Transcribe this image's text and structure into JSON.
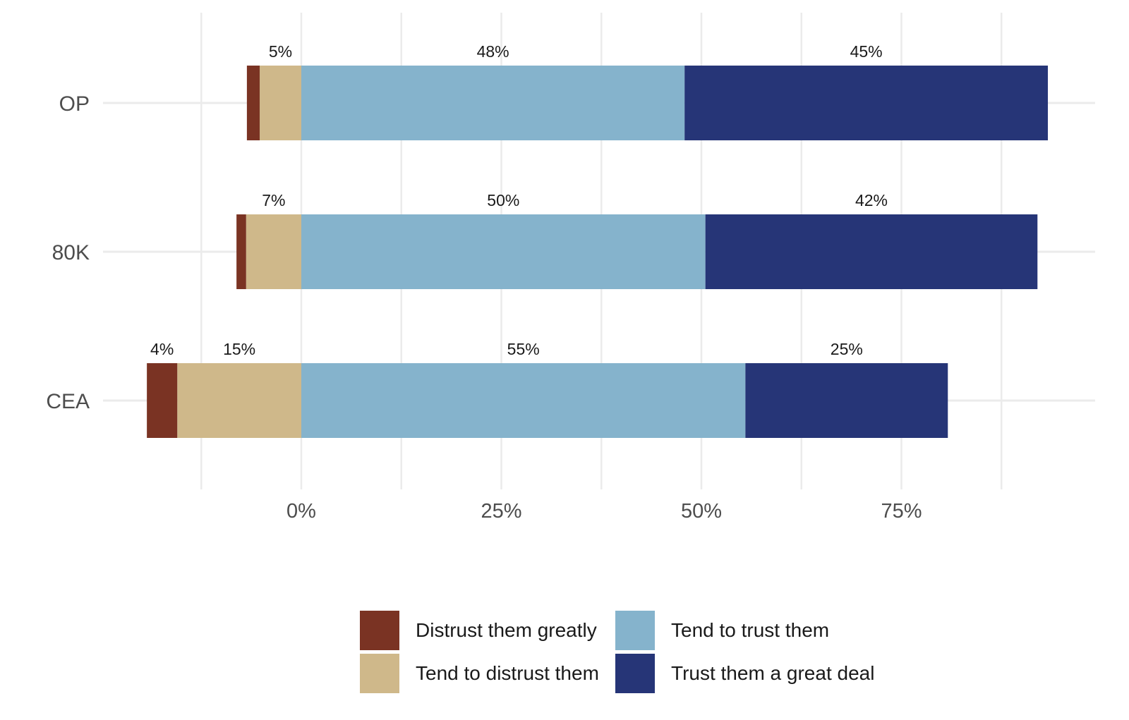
{
  "chart_data": {
    "type": "bar",
    "orientation": "horizontal",
    "stacked": "diverging",
    "title": "",
    "xlabel": "",
    "ylabel": "",
    "categories": [
      "OP",
      "80K",
      "CEA"
    ],
    "xlim": [
      -0.25,
      1.0
    ],
    "x_ticks": [
      0,
      0.25,
      0.5,
      0.75
    ],
    "x_tick_labels": [
      "0%",
      "25%",
      "50%",
      "75%"
    ],
    "grid": true,
    "legend_position": "bottom",
    "series": [
      {
        "name": "Distrust them greatly",
        "color": "#7a3323",
        "side": "negative",
        "values": [
          0.016,
          0.012,
          0.038
        ],
        "labels": [
          "",
          "",
          "4%"
        ]
      },
      {
        "name": "Tend to distrust them",
        "color": "#cfb88a",
        "side": "negative",
        "values": [
          0.052,
          0.069,
          0.155
        ],
        "labels": [
          "5%",
          "7%",
          "15%"
        ]
      },
      {
        "name": "Tend to trust them",
        "color": "#85b3cc",
        "side": "positive",
        "values": [
          0.479,
          0.505,
          0.555
        ],
        "labels": [
          "48%",
          "50%",
          "55%"
        ]
      },
      {
        "name": "Trust them a great deal",
        "color": "#263577",
        "side": "positive",
        "values": [
          0.454,
          0.415,
          0.253
        ],
        "labels": [
          "45%",
          "42%",
          "25%"
        ]
      }
    ]
  }
}
